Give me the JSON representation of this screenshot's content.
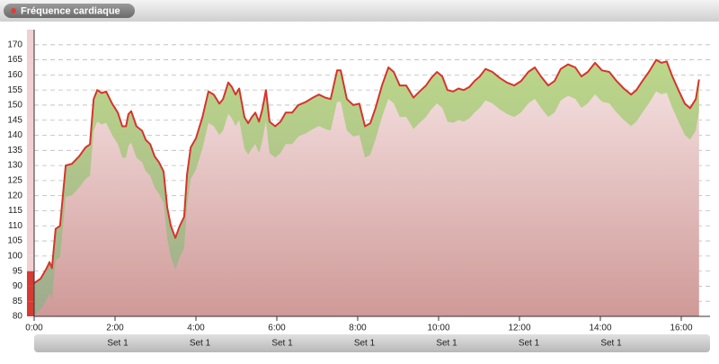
{
  "header": {
    "title": "Fréquence cardiaque"
  },
  "chart_data": {
    "type": "line",
    "x": [
      0,
      0.16,
      0.31,
      0.38,
      0.44,
      0.53,
      0.64,
      0.78,
      0.93,
      1.11,
      1.27,
      1.38,
      1.47,
      1.56,
      1.67,
      1.78,
      1.93,
      2.07,
      2.18,
      2.27,
      2.33,
      2.4,
      2.53,
      2.67,
      2.76,
      2.87,
      2.98,
      3.09,
      3.2,
      3.29,
      3.38,
      3.49,
      3.6,
      3.71,
      3.78,
      3.87,
      4.0,
      4.16,
      4.31,
      4.44,
      4.58,
      4.67,
      4.8,
      4.89,
      4.98,
      5.07,
      5.2,
      5.29,
      5.38,
      5.47,
      5.56,
      5.64,
      5.73,
      5.82,
      5.96,
      6.09,
      6.22,
      6.38,
      6.53,
      6.71,
      6.89,
      7.04,
      7.2,
      7.33,
      7.49,
      7.58,
      7.73,
      7.89,
      8.04,
      8.18,
      8.31,
      8.44,
      8.6,
      8.76,
      8.89,
      9.04,
      9.2,
      9.38,
      9.53,
      9.69,
      9.82,
      9.96,
      10.09,
      10.22,
      10.36,
      10.49,
      10.62,
      10.76,
      10.89,
      11.02,
      11.16,
      11.33,
      11.51,
      11.69,
      11.87,
      12.04,
      12.22,
      12.38,
      12.53,
      12.71,
      12.87,
      13.02,
      13.2,
      13.38,
      13.53,
      13.69,
      13.87,
      14.04,
      14.22,
      14.4,
      14.58,
      14.76,
      14.89,
      15.04,
      15.2,
      15.38,
      15.51,
      15.64,
      15.78,
      15.93,
      16.09,
      16.22,
      16.36,
      16.44
    ],
    "series": [
      {
        "color": "#d6342c",
        "values": [
          91,
          92.5,
          96,
          98,
          96,
          109,
          110,
          130,
          130.5,
          133,
          136,
          137,
          152,
          155,
          154,
          154.5,
          150.5,
          147.5,
          143,
          143,
          147,
          148,
          143,
          141.5,
          138.5,
          137,
          133,
          131,
          128,
          116,
          110,
          106,
          110,
          113,
          127,
          136,
          139,
          146,
          154.5,
          153.5,
          150.5,
          152,
          157.5,
          156,
          153.5,
          155.5,
          146,
          144,
          146,
          147.5,
          144.5,
          148.5,
          155,
          144.5,
          143,
          144.5,
          147.5,
          147.5,
          150,
          151,
          152.5,
          153.5,
          152.5,
          152,
          161.5,
          161.5,
          152,
          150,
          150.5,
          143,
          144,
          149,
          156.5,
          162.5,
          161,
          156.5,
          156.5,
          152.5,
          154.5,
          156.5,
          159,
          161,
          159.5,
          155,
          154.5,
          155.5,
          155,
          156,
          158,
          159.5,
          162,
          161,
          159,
          157.5,
          156.5,
          158,
          161,
          162.5,
          159.5,
          156.5,
          158,
          162,
          163.5,
          162.5,
          159.5,
          161,
          164,
          161.5,
          161,
          158,
          155.5,
          153.5,
          155,
          158,
          161,
          165,
          164,
          164.5,
          159.5,
          155,
          150.5,
          149,
          152,
          158.5
        ]
      }
    ],
    "xlim": [
      0,
      16.44
    ],
    "xticks": [
      {
        "value": 0,
        "label": "0:00"
      },
      {
        "value": 2,
        "label": "2:00"
      },
      {
        "value": 4,
        "label": "4:00"
      },
      {
        "value": 6,
        "label": "6:00"
      },
      {
        "value": 8,
        "label": "8:00"
      },
      {
        "value": 10,
        "label": "10:00"
      },
      {
        "value": 12,
        "label": "12:00"
      },
      {
        "value": 14,
        "label": "14:00"
      },
      {
        "value": 16,
        "label": "16:00"
      }
    ],
    "ylim": [
      80,
      175
    ],
    "yticks": [
      80,
      85,
      90,
      95,
      100,
      105,
      110,
      115,
      120,
      125,
      130,
      135,
      140,
      145,
      150,
      155,
      160,
      165,
      170
    ],
    "grid": true,
    "set_labels": [
      "Set 1",
      "Set 1",
      "Set 1",
      "Set 1",
      "Set 1",
      "Set 1",
      "Set 1"
    ]
  }
}
